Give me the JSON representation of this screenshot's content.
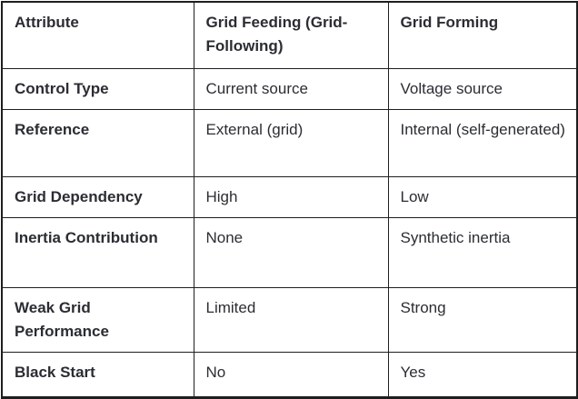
{
  "colors": {
    "text": "#2b2d33",
    "border": "#1e1e1e",
    "background": "#ffffff"
  },
  "table": {
    "headers": [
      "Attribute",
      "Grid Feeding (Grid-Following)",
      "Grid Forming"
    ],
    "rows": [
      [
        "Control Type",
        "Current source",
        "Voltage source"
      ],
      [
        "Reference",
        "External (grid)",
        "Internal (self-generated)"
      ],
      [
        "Grid Dependency",
        "High",
        "Low"
      ],
      [
        "Inertia Contribution",
        "None",
        "Synthetic inertia"
      ],
      [
        "Weak Grid Performance",
        "Limited",
        "Strong"
      ],
      [
        "Black Start",
        "No",
        "Yes"
      ]
    ]
  }
}
